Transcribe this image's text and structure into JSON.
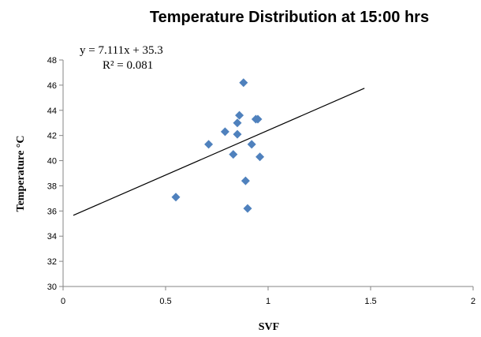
{
  "chart_data": {
    "type": "scatter",
    "title": "Temperature Distribution at 15:00 hrs",
    "xlabel": "SVF",
    "ylabel": "Temperature °C",
    "xlim": [
      0,
      2
    ],
    "ylim": [
      30,
      48
    ],
    "xticks": [
      "0",
      "0.5",
      "1",
      "1.5",
      "2"
    ],
    "yticks": [
      "30",
      "32",
      "34",
      "36",
      "38",
      "40",
      "42",
      "44",
      "46",
      "48"
    ],
    "grid": false,
    "marker_color": "#4F81BD",
    "trendline": {
      "slope": 7.111,
      "intercept": 35.3,
      "x_range": [
        0.05,
        1.47
      ],
      "equation_label": "y = 7.111x + 35.3",
      "r2_label": "R² = 0.081"
    },
    "points": [
      {
        "x": 0.55,
        "y": 37.1
      },
      {
        "x": 0.71,
        "y": 41.3
      },
      {
        "x": 0.79,
        "y": 42.3
      },
      {
        "x": 0.83,
        "y": 40.5
      },
      {
        "x": 0.85,
        "y": 42.1
      },
      {
        "x": 0.85,
        "y": 43.0
      },
      {
        "x": 0.86,
        "y": 43.6
      },
      {
        "x": 0.88,
        "y": 46.2
      },
      {
        "x": 0.89,
        "y": 38.4
      },
      {
        "x": 0.9,
        "y": 36.2
      },
      {
        "x": 0.92,
        "y": 41.3
      },
      {
        "x": 0.94,
        "y": 43.3
      },
      {
        "x": 0.95,
        "y": 43.3
      },
      {
        "x": 0.96,
        "y": 40.3
      }
    ]
  }
}
